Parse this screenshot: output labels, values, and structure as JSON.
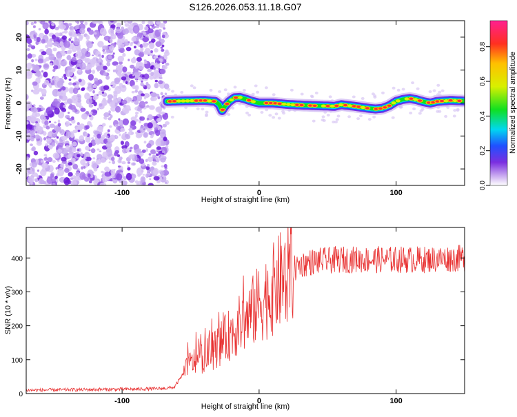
{
  "title": "S126.2026.053.11.18.G07",
  "chart_data": [
    {
      "type": "heatmap",
      "xlabel": "Height of straight line (km)",
      "ylabel": "Frequency (Hz)",
      "xlim": [
        -170,
        150
      ],
      "ylim": [
        -25,
        25
      ],
      "xticks": [
        -100,
        0,
        100
      ],
      "yticks": [
        -20,
        -10,
        0,
        10,
        20
      ],
      "colorbar": {
        "label": "Normalized spectral amplitude",
        "range": [
          0,
          0.95
        ],
        "ticks": [
          0.0,
          0.2,
          0.4,
          0.6,
          0.8
        ]
      },
      "noise_region_x": [
        -170,
        -67
      ],
      "track": {
        "x": [
          -67,
          -60,
          -50,
          -40,
          -32,
          -29,
          -27,
          -25,
          -22,
          -18,
          -14,
          -10,
          -5,
          0,
          10,
          20,
          30,
          40,
          50,
          55,
          60,
          70,
          80,
          85,
          90,
          95,
          100,
          105,
          110,
          115,
          120,
          125,
          130,
          140,
          150
        ],
        "y": [
          0.5,
          0.6,
          0.7,
          0.8,
          0.5,
          -0.5,
          -2.3,
          -1.0,
          0.4,
          1.6,
          1.7,
          1.2,
          0.5,
          0.0,
          0.0,
          -0.4,
          -0.6,
          -0.8,
          -0.9,
          -1.0,
          -0.5,
          -1.0,
          -1.6,
          -1.8,
          -1.6,
          -0.8,
          0.5,
          1.1,
          1.4,
          1.0,
          0.4,
          0.0,
          0.5,
          0.8,
          0.6
        ]
      }
    },
    {
      "type": "line",
      "xlabel": "Height of straight line (km)",
      "ylabel": "SNR (10 * v/v)",
      "xlim": [
        -170,
        150
      ],
      "ylim": [
        0,
        490
      ],
      "xticks": [
        -100,
        0,
        100
      ],
      "yticks": [
        0,
        100,
        200,
        300,
        400
      ],
      "series": [
        {
          "name": "SNR",
          "color": "#e83030",
          "x": [
            -170,
            -120,
            -90,
            -70,
            -62,
            -55,
            -50,
            -45,
            -40,
            -35,
            -30,
            -25,
            -20,
            -15,
            -10,
            -5,
            0,
            5,
            10,
            15,
            20,
            25,
            30,
            40,
            60,
            80,
            100,
            120,
            150
          ],
          "y": [
            10,
            12,
            13,
            15,
            18,
            60,
            90,
            100,
            110,
            120,
            140,
            160,
            180,
            200,
            215,
            240,
            265,
            285,
            305,
            330,
            350,
            365,
            380,
            390,
            395,
            395,
            395,
            395,
            400
          ]
        }
      ]
    }
  ]
}
